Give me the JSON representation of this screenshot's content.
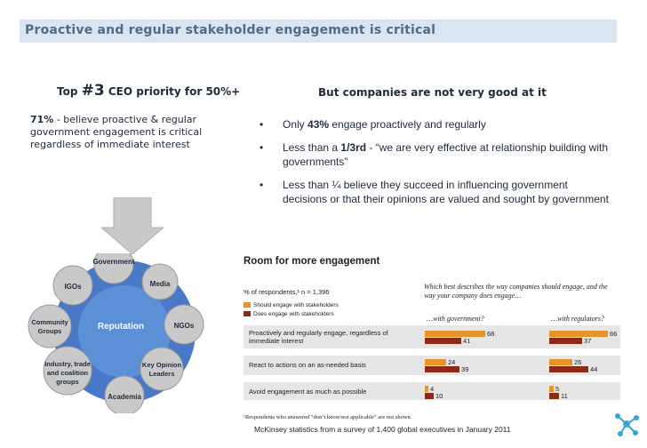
{
  "header": {
    "title": "Proactive and regular stakeholder engagement is critical"
  },
  "left": {
    "prefix": "Top ",
    "rank": "#3",
    "suffix": " CEO priority for 50%+",
    "stat": "71%",
    "text": "  - believe proactive & regular government engagement is critical regardless of immediate interest"
  },
  "right": {
    "heading": "But companies are not very good at it",
    "bullets": [
      {
        "pre": "Only ",
        "bold": "43%",
        "post": " engage proactively and regularly"
      },
      {
        "pre": "Less than a ",
        "bold": "1/3rd",
        "post": " - “we are very effective at relationship building with governments”"
      },
      {
        "pre": "Less than ¼ believe they succeed in influencing government decisions or that their opinions are valued and sought by government",
        "bold": "",
        "post": ""
      }
    ],
    "bullet_symbol": "•"
  },
  "diagram": {
    "center": "Reputation",
    "nodes": [
      "Government",
      "Media",
      "NGOs",
      "Key Opinion Leaders",
      "Academia",
      "Industry, trade and coalition groups",
      "Community Groups",
      "IGOs"
    ],
    "colors": {
      "ring": "#4a78c8",
      "center": "#5b8fd6",
      "node": "#c9c9c9",
      "arrow": "#c9c9c9"
    }
  },
  "survey": {
    "title": "Room for more engagement",
    "respondents": "% of respondents,¹ n = 1,396",
    "legend": [
      "Should engage with stakeholders",
      "Does engage with stakeholders"
    ],
    "question": "Which best describes the way companies should engage, and the way your company does engage…",
    "sub": [
      "…with government?",
      "…with regulators?"
    ],
    "rows": [
      {
        "label": "Proactively and regularly engage, regardless of immediate interest",
        "gov": [
          68,
          41
        ],
        "reg": [
          66,
          37
        ]
      },
      {
        "label": "React to actions on an as-needed basis",
        "gov": [
          24,
          39
        ],
        "reg": [
          26,
          44
        ]
      },
      {
        "label": "Avoid engagement as much as possible",
        "gov": [
          4,
          10
        ],
        "reg": [
          5,
          11
        ]
      }
    ],
    "colors": {
      "should": "#e8922b",
      "does": "#8b2a17"
    },
    "footnote": "¹Respondents who answered “don’t know/not applicable” are not shown.",
    "source": "McKinsey statistics from a survey of 1,400 global executives in January 2011"
  },
  "logo": {
    "icon": "network-icon",
    "color": "#3aa3d8"
  }
}
